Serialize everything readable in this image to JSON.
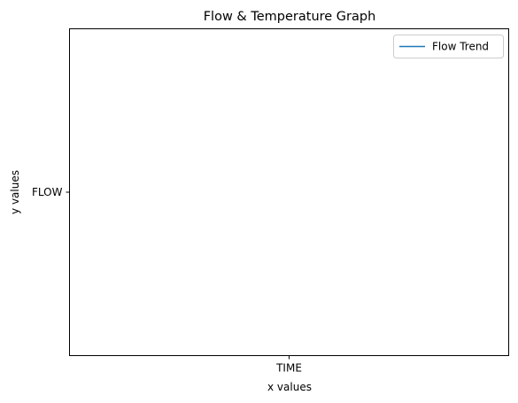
{
  "chart_data": {
    "type": "line",
    "title": "Flow & Temperature Graph",
    "xlabel": "x values",
    "ylabel": "y values",
    "categories": [
      "TIME"
    ],
    "y_categories": [
      "FLOW"
    ],
    "series": [
      {
        "name": "Flow Trend",
        "color": "#1f77b4",
        "points": [
          {
            "x": "TIME",
            "y": "FLOW"
          }
        ]
      }
    ],
    "grid": false,
    "legend_position": "upper-right"
  }
}
